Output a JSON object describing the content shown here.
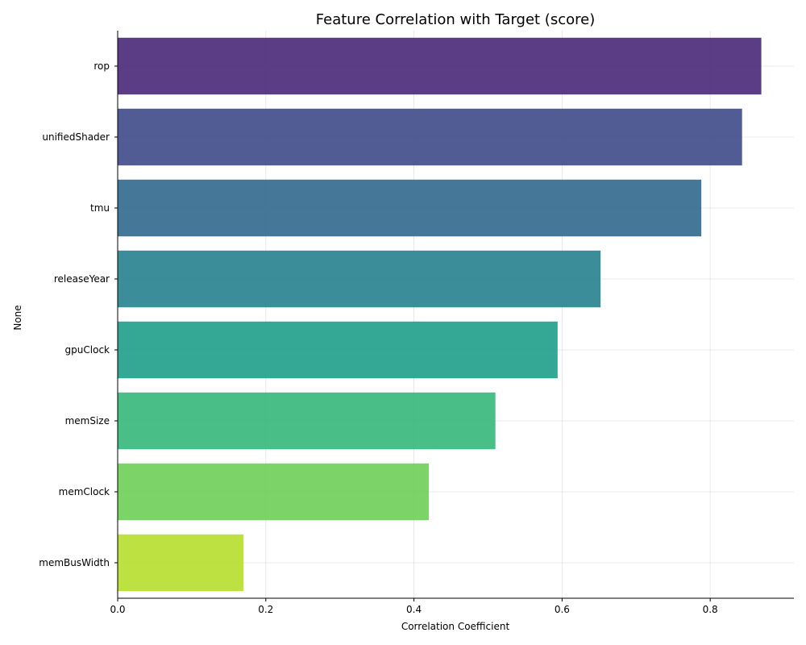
{
  "chart_data": {
    "type": "bar",
    "orientation": "horizontal",
    "title": "Feature Correlation with Target (score)",
    "xlabel": "Correlation Coefficient",
    "ylabel": "None",
    "categories": [
      "rop",
      "unifiedShader",
      "tmu",
      "releaseYear",
      "gpuClock",
      "memSize",
      "memClock",
      "memBusWidth"
    ],
    "values": [
      0.869,
      0.843,
      0.788,
      0.652,
      0.594,
      0.51,
      0.42,
      0.17
    ],
    "colors": [
      "#482878",
      "#3e4a89",
      "#31688e",
      "#26828e",
      "#1f9e89",
      "#35b779",
      "#6ece58",
      "#b5de2b"
    ],
    "xlim": [
      0,
      0.913
    ],
    "xticks": [
      0.0,
      0.2,
      0.4,
      0.6,
      0.8
    ],
    "xtick_labels": [
      "0.0",
      "0.2",
      "0.4",
      "0.6",
      "0.8"
    ],
    "grid": true
  }
}
